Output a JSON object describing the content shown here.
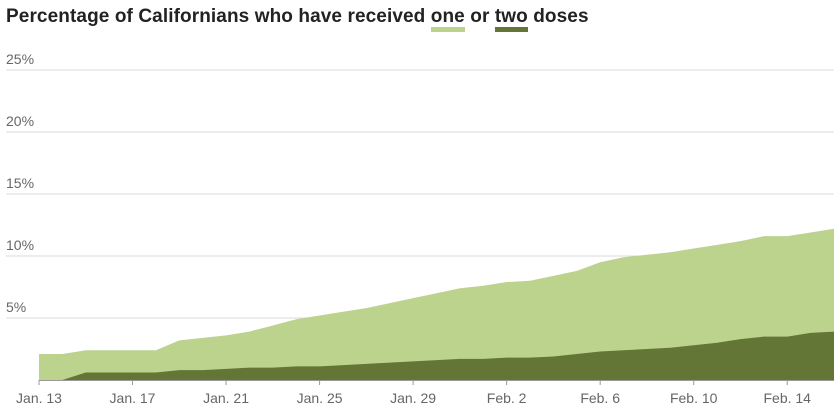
{
  "title": {
    "prefix": "Percentage of Californians who have received ",
    "one": "one",
    "middle": " or ",
    "two": "two",
    "suffix": " doses"
  },
  "colors": {
    "one_dose": "#bcd38e",
    "two_doses": "#637636",
    "grid": "#d9d9d9",
    "axis": "#999999",
    "text": "#666666"
  },
  "chart_data": {
    "type": "area",
    "title": "Percentage of Californians who have received one or two doses",
    "xlabel": "",
    "ylabel": "",
    "x": [
      "Jan. 13",
      "Jan. 14",
      "Jan. 15",
      "Jan. 16",
      "Jan. 17",
      "Jan. 18",
      "Jan. 19",
      "Jan. 20",
      "Jan. 21",
      "Jan. 22",
      "Jan. 23",
      "Jan. 24",
      "Jan. 25",
      "Jan. 26",
      "Jan. 27",
      "Jan. 28",
      "Jan. 29",
      "Jan. 30",
      "Jan. 31",
      "Feb. 1",
      "Feb. 2",
      "Feb. 3",
      "Feb. 4",
      "Feb. 5",
      "Feb. 6",
      "Feb. 7",
      "Feb. 8",
      "Feb. 9",
      "Feb. 10",
      "Feb. 11",
      "Feb. 12",
      "Feb. 13",
      "Feb. 14",
      "Feb. 15",
      "Feb. 16"
    ],
    "x_ticks": [
      "Jan. 13",
      "Jan. 17",
      "Jan. 21",
      "Jan. 25",
      "Jan. 29",
      "Feb. 2",
      "Feb. 6",
      "Feb. 10",
      "Feb. 14"
    ],
    "y_ticks": [
      "5%",
      "10%",
      "15%",
      "20%",
      "25%"
    ],
    "ylim": [
      0,
      25
    ],
    "grid": true,
    "series": [
      {
        "name": "one",
        "values": [
          2.1,
          2.1,
          2.4,
          2.4,
          2.4,
          2.4,
          3.2,
          3.4,
          3.6,
          3.9,
          4.4,
          4.9,
          5.2,
          5.5,
          5.8,
          6.2,
          6.6,
          7.0,
          7.4,
          7.6,
          7.9,
          8.0,
          8.4,
          8.8,
          9.5,
          9.9,
          10.1,
          10.3,
          10.6,
          10.9,
          11.2,
          11.6,
          11.6,
          11.9,
          12.2
        ]
      },
      {
        "name": "two",
        "values": [
          0.0,
          0.0,
          0.6,
          0.6,
          0.6,
          0.6,
          0.8,
          0.8,
          0.9,
          1.0,
          1.0,
          1.1,
          1.1,
          1.2,
          1.3,
          1.4,
          1.5,
          1.6,
          1.7,
          1.7,
          1.8,
          1.8,
          1.9,
          2.1,
          2.3,
          2.4,
          2.5,
          2.6,
          2.8,
          3.0,
          3.3,
          3.5,
          3.5,
          3.8,
          3.9
        ]
      }
    ]
  }
}
